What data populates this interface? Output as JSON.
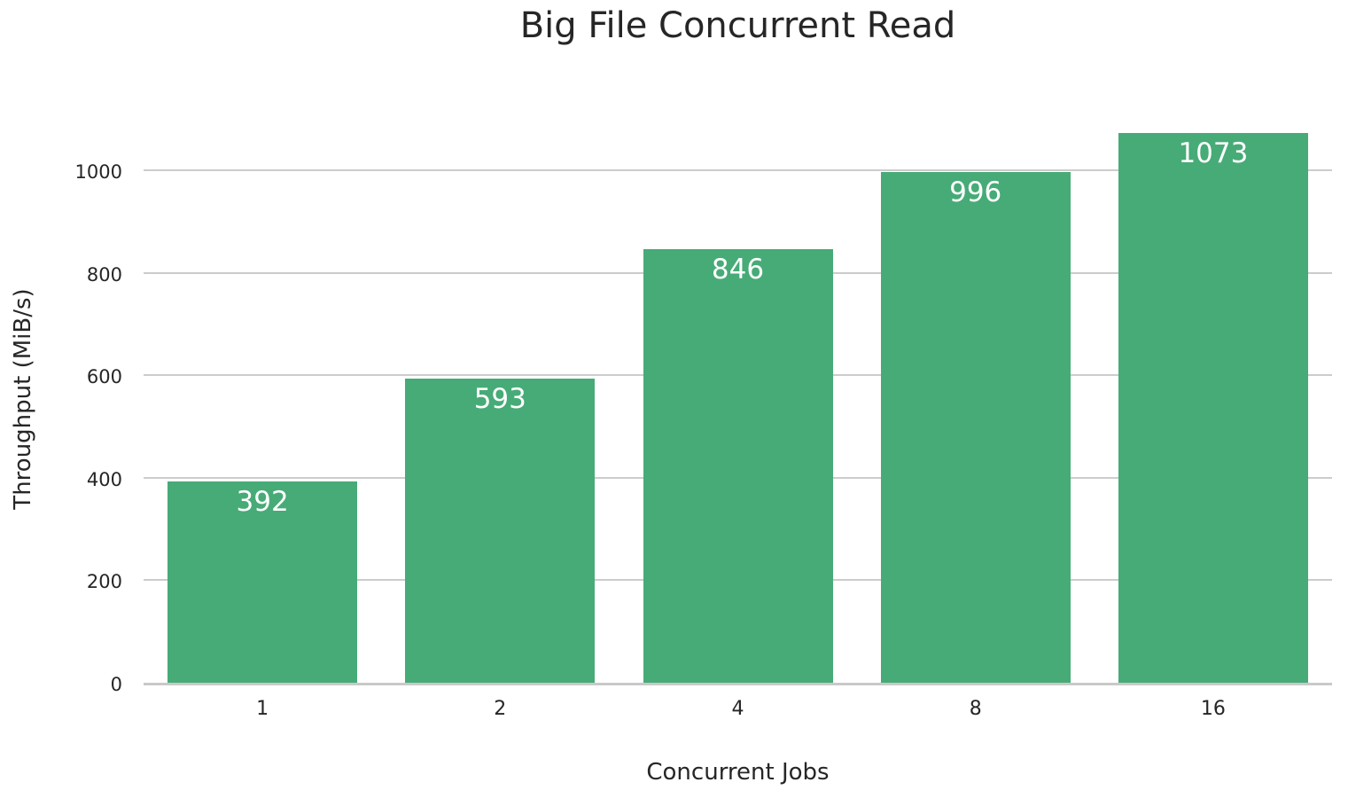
{
  "colors": {
    "bar": "#47ab77",
    "grid": "#cccccc",
    "spine": "#c9c9c9",
    "text": "#262626",
    "value_label": "#ffffff",
    "background": "#ffffff"
  },
  "chart_data": {
    "type": "bar",
    "title": "Big File Concurrent Read",
    "xlabel": "Concurrent Jobs",
    "ylabel": "Throughput (MiB/s)",
    "categories": [
      "1",
      "2",
      "4",
      "8",
      "16"
    ],
    "values": [
      392,
      593,
      846,
      996,
      1073
    ],
    "value_labels": [
      "392",
      "593",
      "846",
      "996",
      "1073"
    ],
    "ylim": [
      0,
      1130
    ],
    "yticks": [
      0,
      200,
      400,
      600,
      800,
      1000
    ],
    "grid": true,
    "legend": false,
    "bar_color": "#47ab77"
  }
}
